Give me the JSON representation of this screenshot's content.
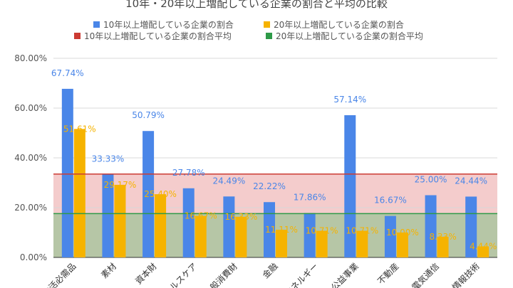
{
  "chart_data": {
    "type": "bar",
    "title": "10年・20年以上増配している企業の割合と平均の比較",
    "categories": [
      "生活必需品",
      "素材",
      "資本財",
      "ヘルスケア",
      "一般消費財",
      "金融",
      "エネルギー",
      "公益事業",
      "不動産",
      "電気通信",
      "情報技術"
    ],
    "series": [
      {
        "name": "10年以上増配している企業の割合",
        "color": "#4a86e8",
        "values": [
          67.74,
          33.33,
          50.79,
          27.78,
          24.49,
          22.22,
          17.86,
          57.14,
          16.67,
          25.0,
          24.44
        ],
        "labels": [
          "67.74%",
          "33.33%",
          "50.79%",
          "27.78%",
          "24.49%",
          "22.22%",
          "17.86%",
          "57.14%",
          "16.67%",
          "25.00%",
          "24.44%"
        ]
      },
      {
        "name": "20年以上増配している企業の割合",
        "color": "#f6b300",
        "values": [
          51.61,
          29.17,
          25.4,
          16.67,
          16.33,
          11.11,
          10.71,
          10.71,
          10.0,
          8.33,
          4.44
        ],
        "labels": [
          "51.61%",
          "29.17%",
          "25.40%",
          "16.67%",
          "16.33%",
          "11.11%",
          "10.71%",
          "10.71%",
          "10.00%",
          "8.33%",
          "4.44%"
        ]
      }
    ],
    "averages": [
      {
        "name": "10年以上増配している企業の割合平均",
        "color": "#cc3b33",
        "value": 33.5
      },
      {
        "name": "20年以上増配している企業の割合平均",
        "color": "#2e9a48",
        "value": 17.6
      }
    ],
    "ylim": [
      0,
      80
    ],
    "yticks": [
      "0.00%",
      "20.00%",
      "40.00%",
      "60.00%",
      "80.00%"
    ],
    "grid": true,
    "legend_position": "top"
  }
}
